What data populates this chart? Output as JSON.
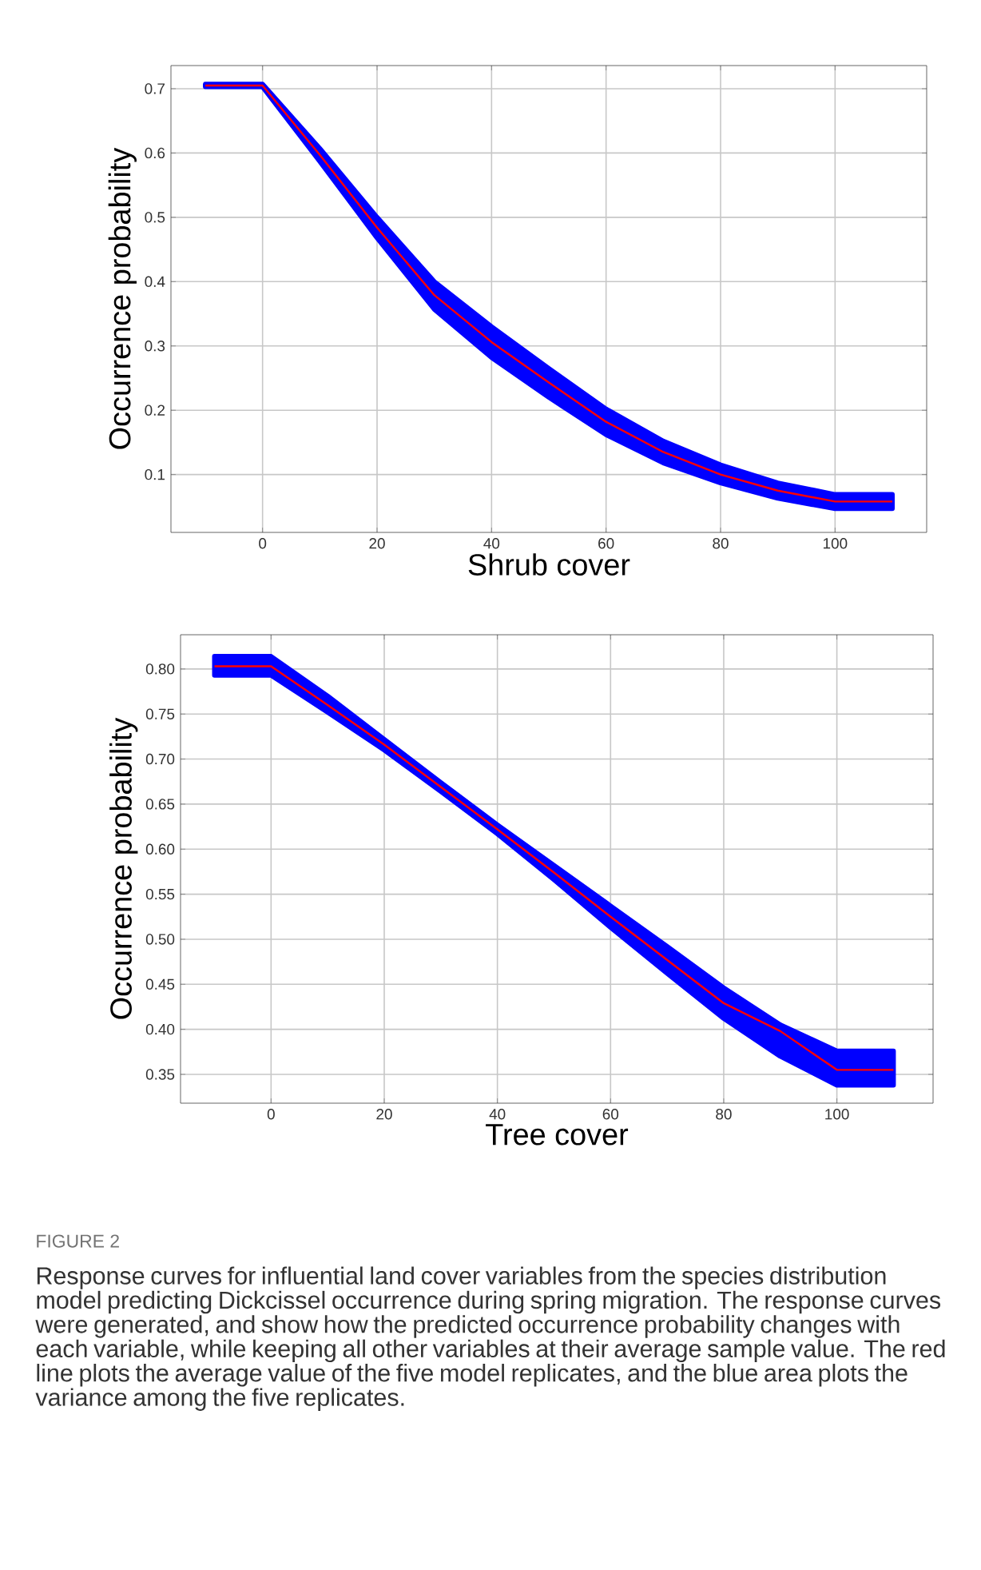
{
  "chart_data": [
    {
      "type": "line",
      "xlabel": "Shrub cover",
      "ylabel": "Occurrence probability",
      "xlim": [
        -16,
        116
      ],
      "ylim": [
        0.01,
        0.736
      ],
      "xticks": [
        0,
        20,
        40,
        60,
        80,
        100
      ],
      "yticks": [
        0.1,
        0.2,
        0.3,
        0.4,
        0.5,
        0.6,
        0.7
      ],
      "grid": true,
      "marker": "none",
      "line_style": "solid",
      "series": [
        {
          "color": "#ff0000",
          "x": [
            -10,
            0,
            10,
            20,
            30,
            40,
            50,
            60,
            70,
            80,
            90,
            100,
            110
          ],
          "values": [
            0.705,
            0.705,
            0.597,
            0.484,
            0.379,
            0.306,
            0.243,
            0.182,
            0.135,
            0.1,
            0.075,
            0.058,
            0.058
          ],
          "lower": [
            0.703,
            0.703,
            0.587,
            0.468,
            0.357,
            0.282,
            0.22,
            0.162,
            0.118,
            0.087,
            0.063,
            0.047,
            0.047
          ],
          "upper": [
            0.707,
            0.707,
            0.607,
            0.5,
            0.4,
            0.33,
            0.265,
            0.202,
            0.152,
            0.115,
            0.087,
            0.069,
            0.069
          ]
        }
      ]
    },
    {
      "type": "line",
      "xlabel": "Tree cover",
      "ylabel": "Occurrence probability",
      "xlim": [
        -16,
        117
      ],
      "ylim": [
        0.318,
        0.838
      ],
      "xticks": [
        0,
        20,
        40,
        60,
        80,
        100
      ],
      "yticks": [
        0.35,
        {
          "value": 0.4,
          "label": "0.40"
        },
        0.45,
        {
          "value": 0.5,
          "label": "0.50"
        },
        0.55,
        {
          "value": 0.6,
          "label": "0.60"
        },
        0.65,
        {
          "value": 0.7,
          "label": "0.70"
        },
        0.75,
        {
          "value": 0.8,
          "label": "0.80"
        }
      ],
      "grid": true,
      "marker": "none",
      "line_style": "solid",
      "series": [
        {
          "color": "#ff0000",
          "x": [
            -10,
            0,
            10,
            20,
            30,
            40,
            50,
            60,
            70,
            80,
            90,
            100,
            110
          ],
          "values": [
            0.803,
            0.803,
            0.76,
            0.716,
            0.669,
            0.622,
            0.574,
            0.525,
            0.477,
            0.429,
            0.398,
            0.355,
            0.355
          ],
          "lower": [
            0.793,
            0.793,
            0.752,
            0.71,
            0.664,
            0.617,
            0.566,
            0.513,
            0.462,
            0.412,
            0.37,
            0.338,
            0.338
          ],
          "upper": [
            0.814,
            0.814,
            0.77,
            0.722,
            0.674,
            0.627,
            0.582,
            0.537,
            0.492,
            0.446,
            0.405,
            0.376,
            0.376
          ]
        }
      ],
      "annotations": [
        "FIGURE 2",
        "Response curves for influential land cover variables from the species distribution model predicting Dickcissel occurrence during spring migration. The response curves were generated, and show how the predicted occurrence probability changes with each variable, while keeping all other variables at their average sample value. The red line plots the average value of the five model replicates, and the blue area plots the variance among the five replicates."
      ]
    }
  ]
}
